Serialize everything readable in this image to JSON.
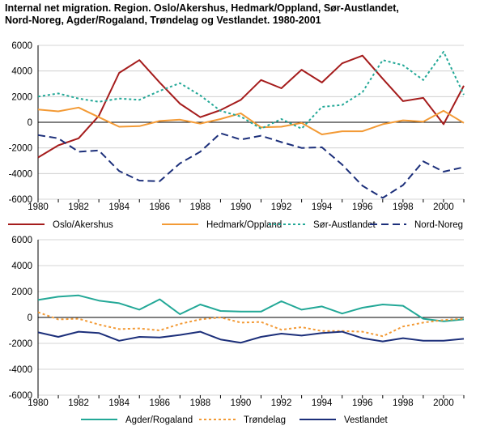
{
  "title_line1": "Internal net migration. Region. Oslo/Akershus, Hedmark/Oppland, Sør-Austlandet,",
  "title_line2": "Nord-Noreg, Agder/Rogaland, Trøndelag og Vestlandet. 1980-2001",
  "chart_data": [
    {
      "type": "line",
      "x": [
        1980,
        1981,
        1982,
        1983,
        1984,
        1985,
        1986,
        1987,
        1988,
        1989,
        1990,
        1991,
        1992,
        1993,
        1994,
        1995,
        1996,
        1997,
        1998,
        1999,
        2000,
        2001
      ],
      "xticks": [
        1980,
        1982,
        1984,
        1986,
        1988,
        1990,
        1992,
        1994,
        1996,
        1998,
        2000
      ],
      "ylim": [
        -6000,
        6000
      ],
      "yticks": [
        -6000,
        -4000,
        -2000,
        0,
        2000,
        4000,
        6000
      ],
      "grid": true,
      "legend": "bottom",
      "series": [
        {
          "name": "Oslo/Akershus",
          "color": "#a51c1c",
          "dash": "solid",
          "values": [
            -2750,
            -1800,
            -1250,
            500,
            3850,
            4850,
            3100,
            1450,
            400,
            950,
            1750,
            3300,
            2650,
            4100,
            3100,
            4600,
            5200,
            3400,
            1650,
            1900,
            -150,
            2850
          ]
        },
        {
          "name": "Hedmark/Oppland",
          "color": "#f39a35",
          "dash": "solid",
          "values": [
            1000,
            850,
            1150,
            400,
            -350,
            -300,
            100,
            200,
            -100,
            250,
            700,
            -400,
            -350,
            -50,
            -950,
            -700,
            -700,
            -150,
            150,
            50,
            900,
            -50
          ]
        },
        {
          "name": "Sør-Austlandet",
          "color": "#23a897",
          "dash": "dotted",
          "values": [
            2000,
            2250,
            1850,
            1600,
            1850,
            1750,
            2450,
            3050,
            2100,
            900,
            450,
            -500,
            250,
            -500,
            1200,
            1350,
            2350,
            4850,
            4450,
            3300,
            5500,
            2150
          ]
        },
        {
          "name": "Nord-Noreg",
          "color": "#1c2f7a",
          "dash": "dashed",
          "values": [
            -1000,
            -1250,
            -2300,
            -2200,
            -3800,
            -4550,
            -4600,
            -3200,
            -2300,
            -850,
            -1350,
            -1050,
            -1550,
            -2000,
            -1950,
            -3300,
            -4950,
            -5900,
            -4900,
            -3050,
            -3850,
            -3500
          ]
        }
      ]
    },
    {
      "type": "line",
      "x": [
        1980,
        1981,
        1982,
        1983,
        1984,
        1985,
        1986,
        1987,
        1988,
        1989,
        1990,
        1991,
        1992,
        1993,
        1994,
        1995,
        1996,
        1997,
        1998,
        1999,
        2000,
        2001
      ],
      "xticks": [
        1980,
        1982,
        1984,
        1986,
        1988,
        1990,
        1992,
        1994,
        1996,
        1998,
        2000
      ],
      "ylim": [
        -6000,
        6000
      ],
      "yticks": [
        -6000,
        -4000,
        -2000,
        0,
        2000,
        4000,
        6000
      ],
      "grid": true,
      "legend": "bottom",
      "series": [
        {
          "name": "Agder/Rogaland",
          "color": "#23a897",
          "dash": "solid",
          "values": [
            1350,
            1600,
            1700,
            1300,
            1100,
            600,
            1400,
            250,
            1000,
            500,
            450,
            450,
            1250,
            600,
            850,
            300,
            750,
            1000,
            900,
            -100,
            -300,
            -150
          ]
        },
        {
          "name": "Trøndelag",
          "color": "#f39a35",
          "dash": "dotted",
          "values": [
            400,
            -150,
            -100,
            -550,
            -900,
            -850,
            -1000,
            -500,
            -150,
            0,
            -400,
            -350,
            -950,
            -750,
            -1050,
            -1050,
            -1100,
            -1450,
            -700,
            -400,
            -200,
            -100
          ]
        },
        {
          "name": "Vestlandet",
          "color": "#1c2f7a",
          "dash": "solid",
          "values": [
            -1150,
            -1500,
            -1100,
            -1200,
            -1800,
            -1500,
            -1550,
            -1350,
            -1100,
            -1700,
            -1950,
            -1500,
            -1250,
            -1400,
            -1200,
            -1100,
            -1600,
            -1850,
            -1600,
            -1800,
            -1800,
            -1650
          ]
        }
      ]
    }
  ]
}
